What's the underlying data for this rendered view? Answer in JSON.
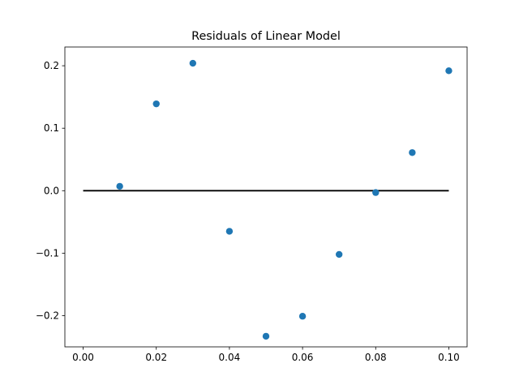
{
  "chart_data": {
    "type": "scatter",
    "title": "Residuals of Linear Model",
    "xlabel": "",
    "ylabel": "",
    "xlim": [
      -0.005,
      0.105
    ],
    "ylim": [
      -0.25,
      0.23
    ],
    "grid": false,
    "x_ticks": [
      {
        "value": 0.0,
        "label": "0.00"
      },
      {
        "value": 0.02,
        "label": "0.02"
      },
      {
        "value": 0.04,
        "label": "0.04"
      },
      {
        "value": 0.06,
        "label": "0.06"
      },
      {
        "value": 0.08,
        "label": "0.08"
      },
      {
        "value": 0.1,
        "label": "0.10"
      }
    ],
    "y_ticks": [
      {
        "value": -0.2,
        "label": "−0.2"
      },
      {
        "value": -0.1,
        "label": "−0.1"
      },
      {
        "value": 0.0,
        "label": "0.0"
      },
      {
        "value": 0.1,
        "label": "0.1"
      },
      {
        "value": 0.2,
        "label": "0.2"
      }
    ],
    "series": [
      {
        "color": "#1f77b4",
        "x": [
          0.01,
          0.02,
          0.03,
          0.04,
          0.05,
          0.06,
          0.07,
          0.08,
          0.09,
          0.1
        ],
        "y": [
          0.007,
          0.139,
          0.204,
          -0.065,
          -0.233,
          -0.201,
          -0.102,
          -0.003,
          0.061,
          0.192
        ]
      }
    ],
    "reference_line": {
      "x": [
        0.0,
        0.1
      ],
      "y": [
        0.0,
        0.0
      ],
      "color": "#000000"
    }
  }
}
